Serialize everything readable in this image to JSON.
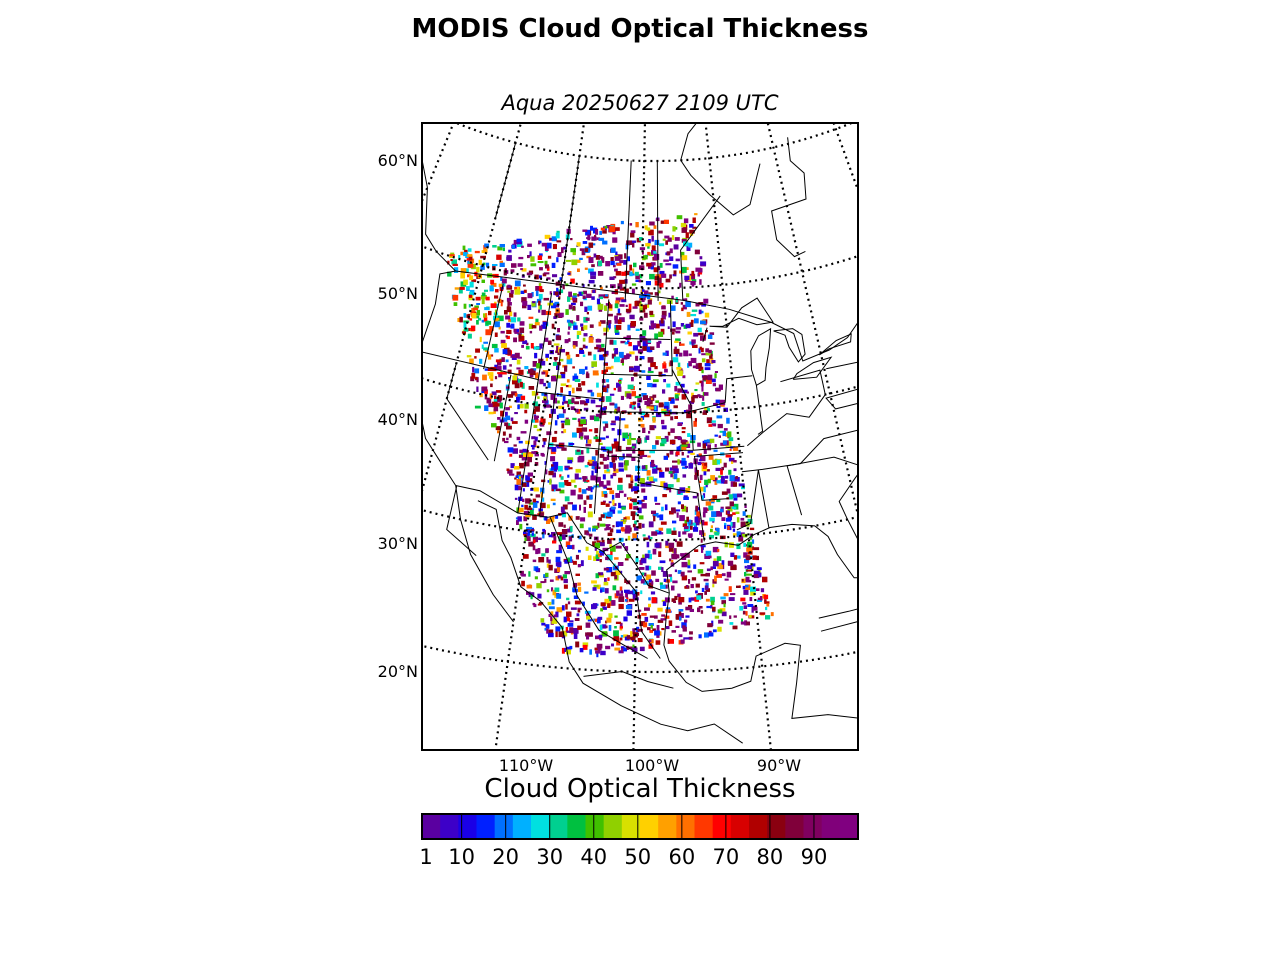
{
  "title": "MODIS Cloud Optical Thickness",
  "subtitle": "Aqua 20250627 2109 UTC",
  "latitude_labels": [
    {
      "text": "60°N",
      "value": 60
    },
    {
      "text": "50°N",
      "value": 50
    },
    {
      "text": "40°N",
      "value": 40
    },
    {
      "text": "30°N",
      "value": 30
    },
    {
      "text": "20°N",
      "value": 20
    }
  ],
  "longitude_labels": [
    {
      "text": "110°W",
      "value": -110
    },
    {
      "text": "100°W",
      "value": -100
    },
    {
      "text": "90°W",
      "value": -90
    }
  ],
  "colorbar": {
    "title": "Cloud Optical Thickness",
    "min": 1,
    "max": 100,
    "ticks": [
      "1",
      "10",
      "20",
      "30",
      "40",
      "50",
      "60",
      "70",
      "80",
      "90"
    ],
    "tick_values": [
      1,
      10,
      20,
      30,
      40,
      50,
      60,
      70,
      80,
      90
    ],
    "colors": [
      "#5a00a0",
      "#3d00c8",
      "#1a00e6",
      "#0020ff",
      "#0070ff",
      "#00b0ff",
      "#00e0e0",
      "#00d090",
      "#00c040",
      "#40c000",
      "#90d000",
      "#d8e000",
      "#ffd000",
      "#ffa000",
      "#ff7000",
      "#ff3800",
      "#ff0000",
      "#d80000",
      "#b00000",
      "#8a0010",
      "#80003a",
      "#800060",
      "#80007a",
      "#800080"
    ]
  },
  "colors": {
    "frame": "#000000",
    "background": "#ffffff"
  }
}
